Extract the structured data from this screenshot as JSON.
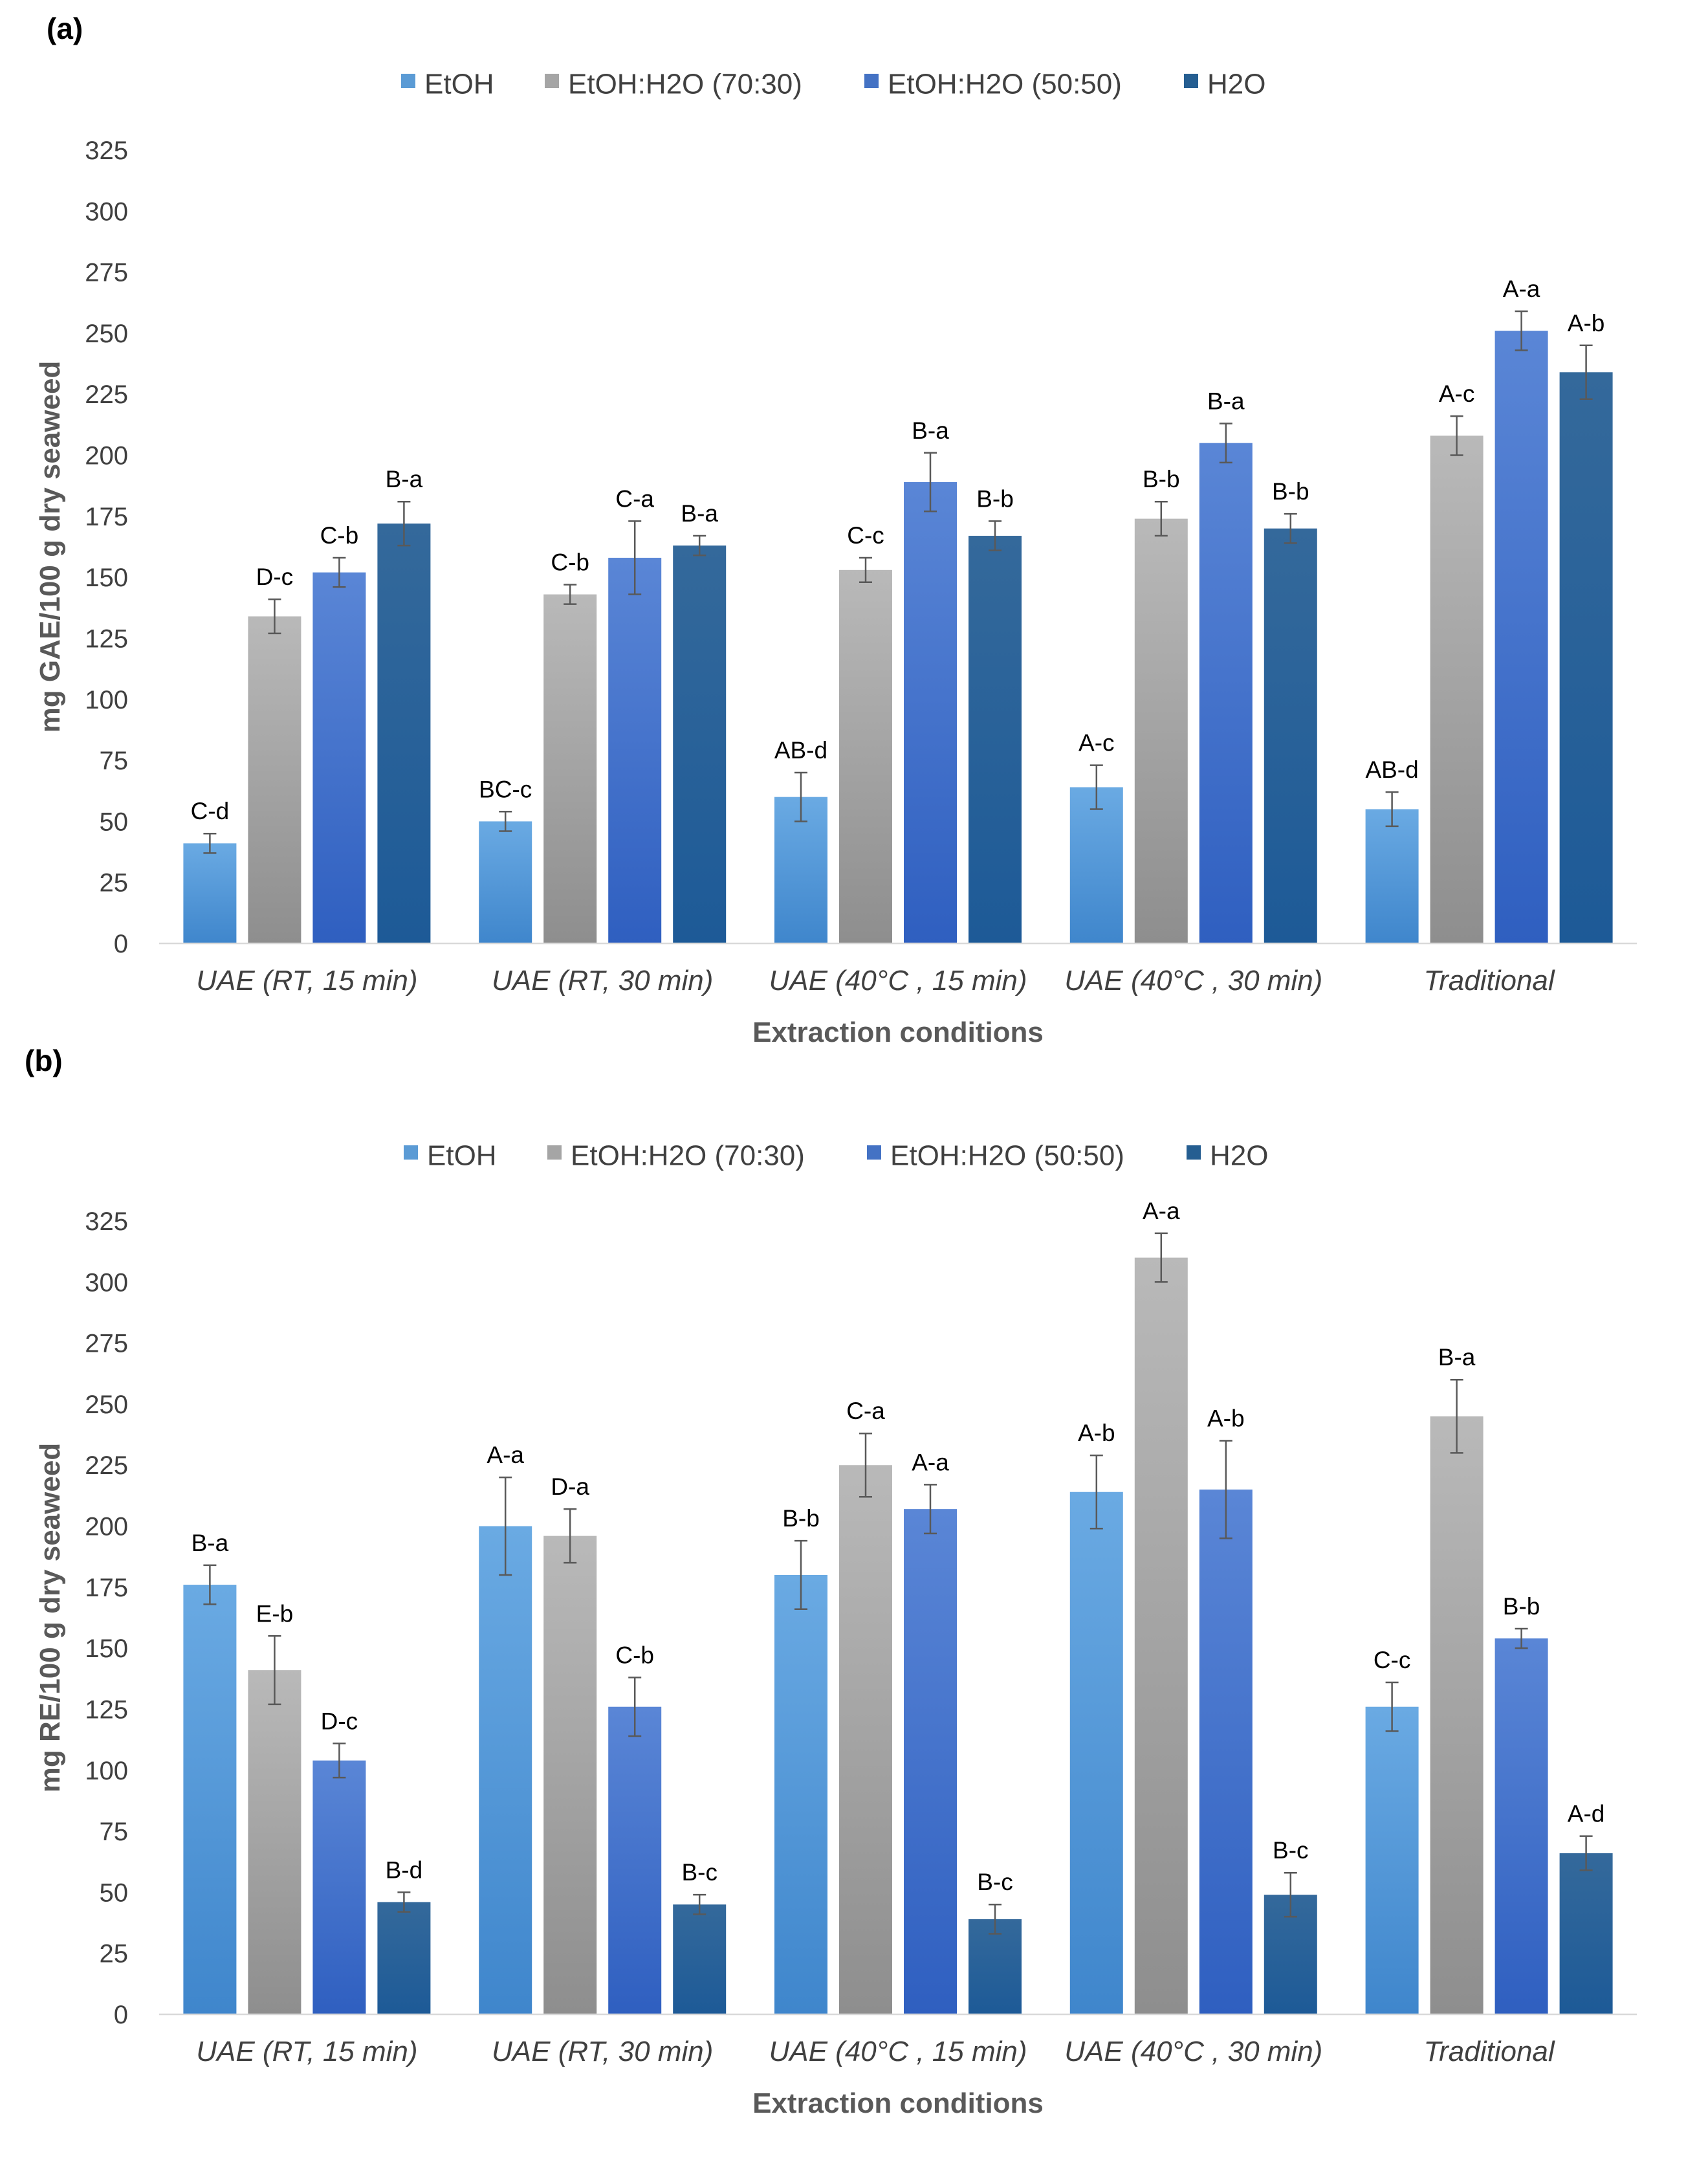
{
  "chart_data": [
    {
      "type": "bar",
      "panel_label": "(a)",
      "title": "",
      "xlabel": "Extraction conditions",
      "ylabel": "mg GAE/100 g dry seaweed",
      "ylim": [
        0,
        325
      ],
      "yticks": [
        "0",
        "25",
        "50",
        "75",
        "100",
        "125",
        "150",
        "175",
        "200",
        "225",
        "250",
        "275",
        "300",
        "325"
      ],
      "grid": false,
      "legend_position": "top",
      "categories": [
        "UAE (RT, 15 min)",
        "UAE (RT, 30 min)",
        "UAE (40°C , 15 min)",
        "UAE (40°C , 30 min)",
        "Traditional"
      ],
      "series": [
        {
          "name": "EtOH",
          "color": "#5b9bd5",
          "values": [
            41,
            50,
            60,
            64,
            55
          ],
          "errors": [
            4,
            4,
            10,
            9,
            7
          ],
          "labels": [
            "C-d",
            "BC-c",
            "AB-d",
            "A-c",
            "AB-d"
          ]
        },
        {
          "name": "EtOH:H2O (70:30)",
          "color": "#a5a5a5",
          "values": [
            134,
            143,
            153,
            174,
            208
          ],
          "errors": [
            7,
            4,
            5,
            7,
            8
          ],
          "labels": [
            "D-c",
            "C-b",
            "C-c",
            "B-b",
            "A-c"
          ]
        },
        {
          "name": "EtOH:H2O (50:50)",
          "color": "#4472c4",
          "values": [
            152,
            158,
            189,
            205,
            251
          ],
          "errors": [
            6,
            15,
            12,
            8,
            8
          ],
          "labels": [
            "C-b",
            "C-a",
            "B-a",
            "B-a",
            "A-a"
          ]
        },
        {
          "name": "H2O",
          "color": "#255e91",
          "values": [
            172,
            163,
            167,
            170,
            234
          ],
          "errors": [
            9,
            4,
            6,
            6,
            11
          ],
          "labels": [
            "B-a",
            "B-a",
            "B-b",
            "B-b",
            "A-b"
          ]
        }
      ]
    },
    {
      "type": "bar",
      "panel_label": "(b)",
      "title": "",
      "xlabel": "Extraction conditions",
      "ylabel": "mg RE/100 g dry seaweed",
      "ylim": [
        0,
        325
      ],
      "yticks": [
        "0",
        "25",
        "50",
        "75",
        "100",
        "125",
        "150",
        "175",
        "200",
        "225",
        "250",
        "275",
        "300",
        "325"
      ],
      "grid": false,
      "legend_position": "top",
      "categories": [
        "UAE (RT, 15 min)",
        "UAE (RT, 30 min)",
        "UAE (40°C , 15 min)",
        "UAE (40°C , 30 min)",
        "Traditional"
      ],
      "series": [
        {
          "name": "EtOH",
          "color": "#5b9bd5",
          "values": [
            176,
            200,
            180,
            214,
            126
          ],
          "errors": [
            8,
            20,
            14,
            15,
            10
          ],
          "labels": [
            "B-a",
            "A-a",
            "B-b",
            "A-b",
            "C-c"
          ]
        },
        {
          "name": "EtOH:H2O (70:30)",
          "color": "#a5a5a5",
          "values": [
            141,
            196,
            225,
            310,
            245
          ],
          "errors": [
            14,
            11,
            13,
            10,
            15
          ],
          "labels": [
            "E-b",
            "D-a",
            "C-a",
            "A-a",
            "B-a"
          ]
        },
        {
          "name": "EtOH:H2O (50:50)",
          "color": "#4472c4",
          "values": [
            104,
            126,
            207,
            215,
            154
          ],
          "errors": [
            7,
            12,
            10,
            20,
            4
          ],
          "labels": [
            "D-c",
            "C-b",
            "A-a",
            "A-b",
            "B-b"
          ]
        },
        {
          "name": "H2O",
          "color": "#255e91",
          "values": [
            46,
            45,
            39,
            49,
            66
          ],
          "errors": [
            4,
            4,
            6,
            9,
            7
          ],
          "labels": [
            "B-d",
            "B-c",
            "B-c",
            "B-c",
            "A-d"
          ]
        }
      ]
    }
  ]
}
